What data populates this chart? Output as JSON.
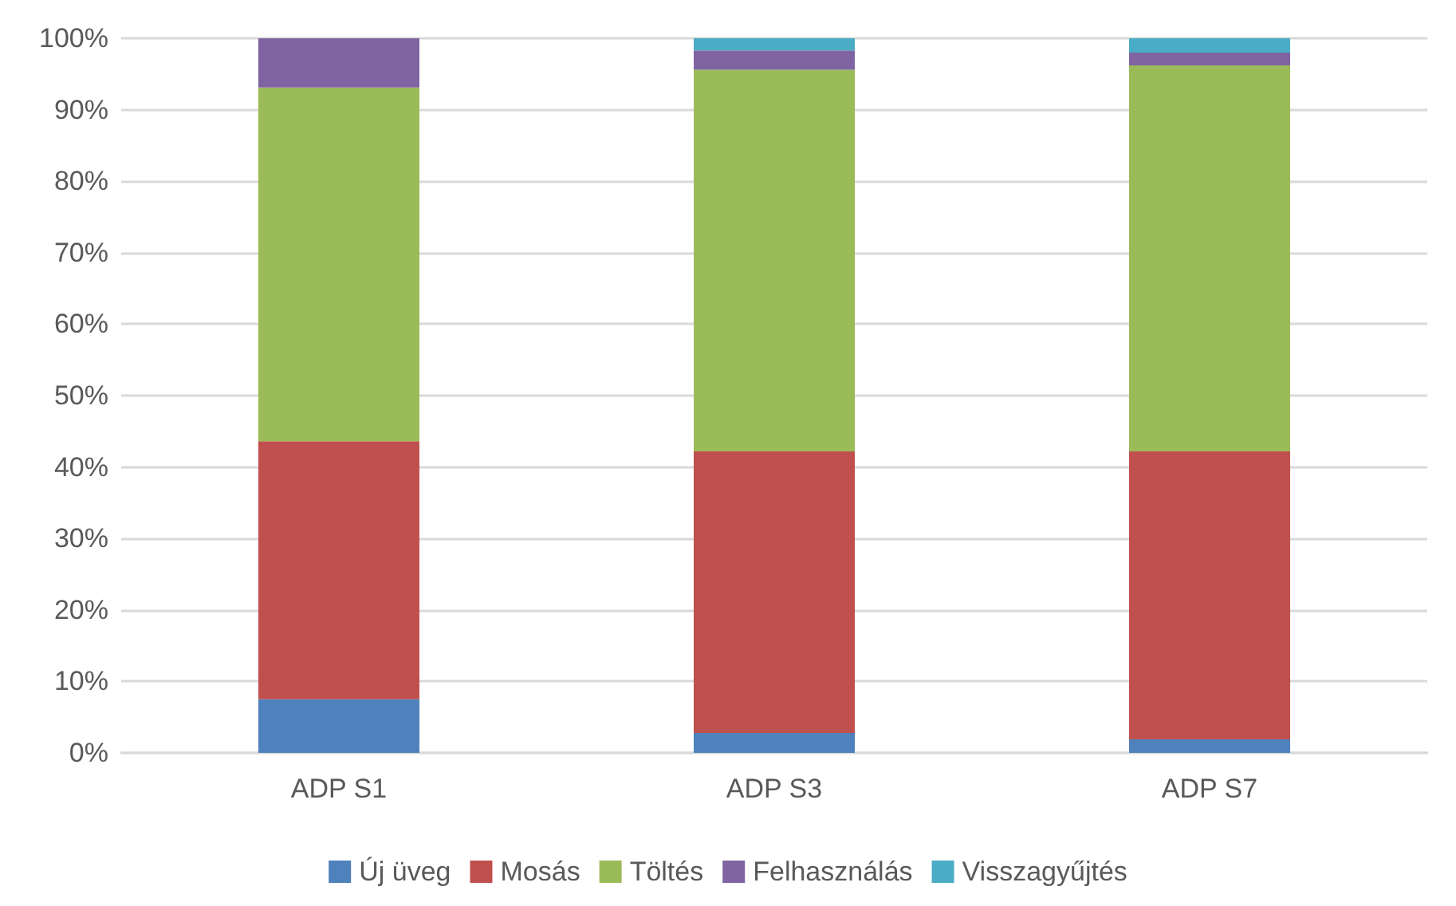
{
  "chart_data": {
    "type": "bar",
    "stacked": true,
    "categories": [
      "ADP S1",
      "ADP S3",
      "ADP S7"
    ],
    "series": [
      {
        "name": "Új üveg",
        "color": "#4f81bd",
        "values": [
          7.5,
          2.8,
          1.9
        ]
      },
      {
        "name": "Mosás",
        "color": "#c0504d",
        "values": [
          36.1,
          39.4,
          40.3
        ]
      },
      {
        "name": "Töltés",
        "color": "#9bbb59",
        "values": [
          49.5,
          53.4,
          54.0
        ]
      },
      {
        "name": "Felhasználás",
        "color": "#8064a2",
        "values": [
          6.9,
          2.7,
          1.8
        ]
      },
      {
        "name": "Visszagyűjtés",
        "color": "#4bacc6",
        "values": [
          0,
          1.7,
          2.0
        ]
      }
    ],
    "ylim": [
      0,
      100
    ],
    "yticks": [
      {
        "value": 0,
        "label": "0%"
      },
      {
        "value": 10,
        "label": "10%"
      },
      {
        "value": 20,
        "label": "20%"
      },
      {
        "value": 30,
        "label": "30%"
      },
      {
        "value": 40,
        "label": "40%"
      },
      {
        "value": 50,
        "label": "50%"
      },
      {
        "value": 60,
        "label": "60%"
      },
      {
        "value": 70,
        "label": "70%"
      },
      {
        "value": 80,
        "label": "80%"
      },
      {
        "value": 90,
        "label": "90%"
      },
      {
        "value": 100,
        "label": "100%"
      }
    ],
    "grid": true,
    "legend": "bottom"
  }
}
